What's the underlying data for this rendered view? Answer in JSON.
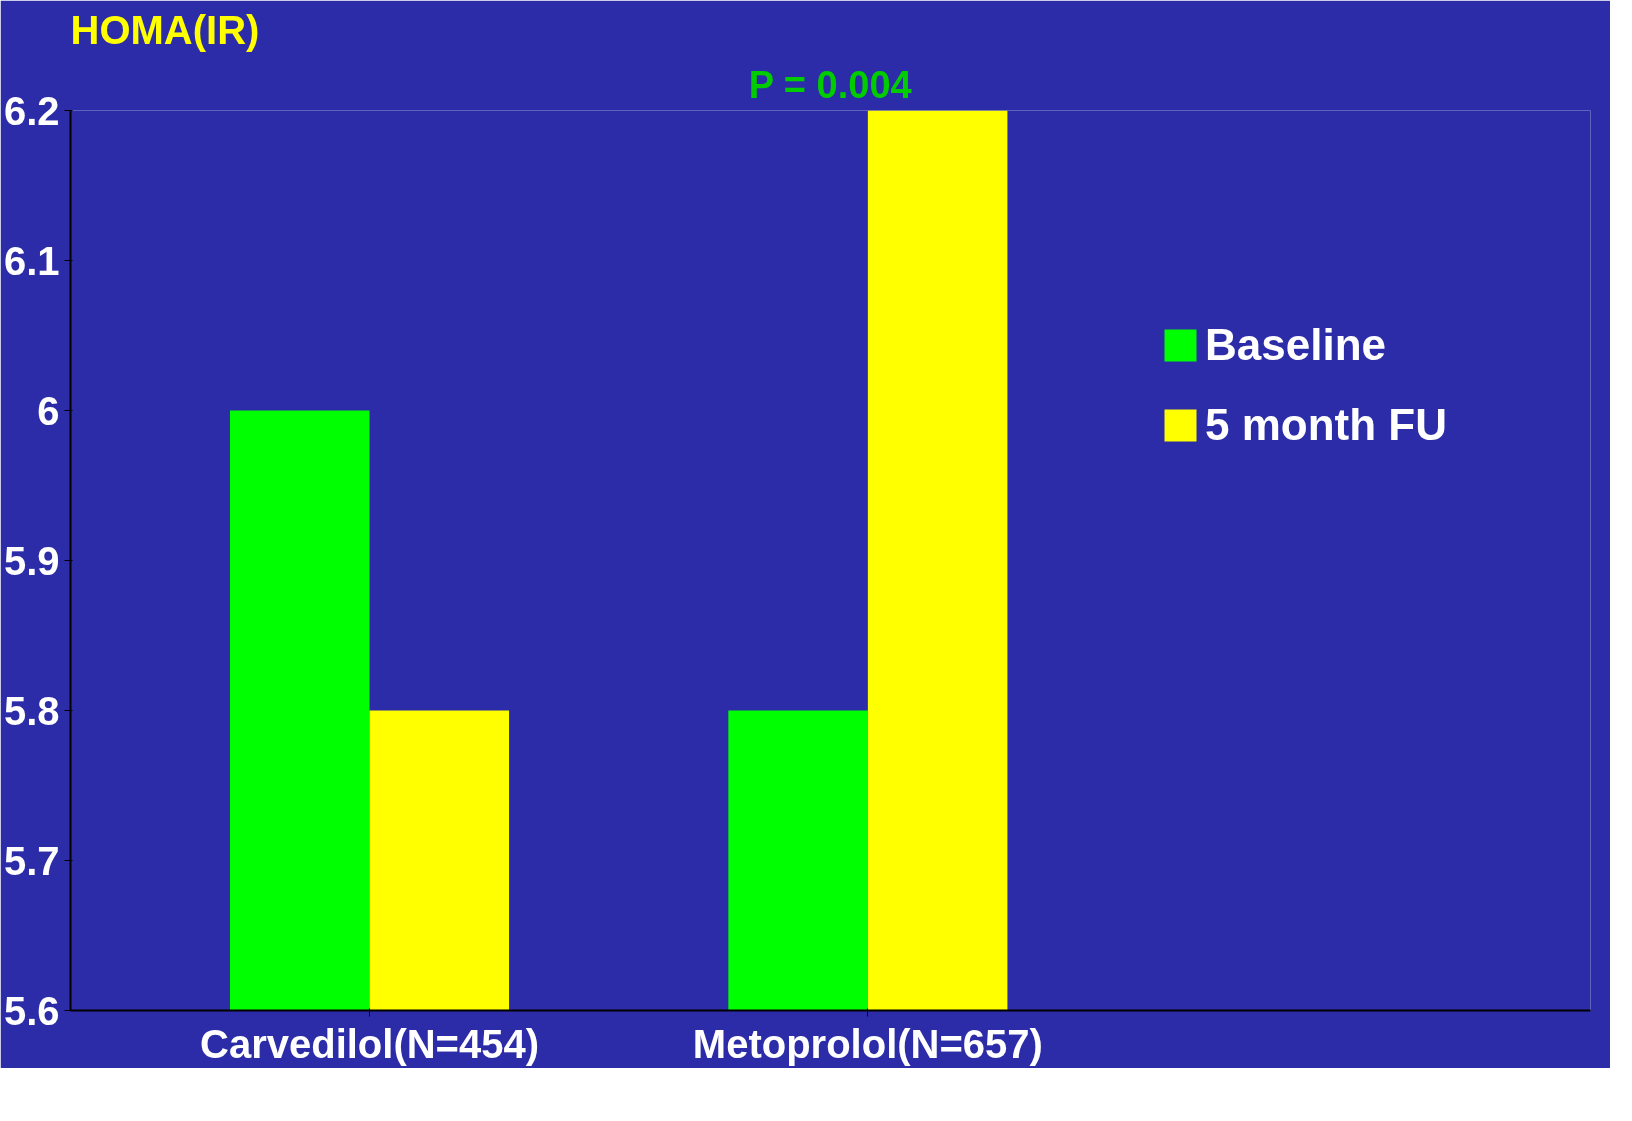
{
  "chart_data": {
    "type": "bar",
    "ylabel": "HOMA(IR)",
    "categories": [
      "Carvedilol(N=454)",
      "Metoprolol(N=657)"
    ],
    "series": [
      {
        "name": "Baseline",
        "color": "#00ff00",
        "values": [
          6.0,
          5.8
        ]
      },
      {
        "name": "5 month FU",
        "color": "#ffff00",
        "values": [
          5.8,
          6.2
        ]
      }
    ],
    "ylim": [
      5.6,
      6.2
    ],
    "yticks": [
      5.6,
      5.7,
      5.8,
      5.9,
      6,
      6.1,
      6.2
    ],
    "grid": false,
    "legend": "right",
    "annotations": [
      "P = 0.004"
    ]
  }
}
